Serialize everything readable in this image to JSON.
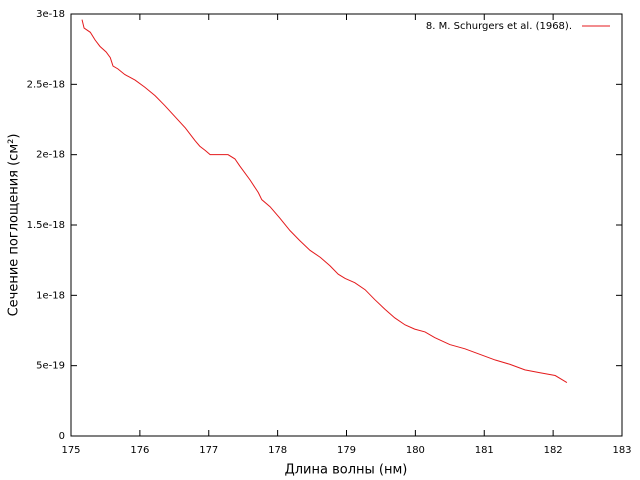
{
  "chart_data": {
    "type": "line",
    "xlabel": "Длина волны (нм)",
    "ylabel": "Сечение поглощения (см²)",
    "x": [
      175.16,
      175.19,
      175.28,
      175.35,
      175.42,
      175.51,
      175.57,
      175.61,
      175.68,
      175.78,
      175.93,
      176.07,
      176.22,
      176.36,
      176.51,
      176.66,
      176.8,
      176.87,
      176.95,
      177.02,
      177.16,
      177.28,
      177.38,
      177.45,
      177.6,
      177.72,
      177.77,
      177.89,
      178.03,
      178.18,
      178.32,
      178.47,
      178.62,
      178.76,
      178.88,
      178.98,
      179.12,
      179.27,
      179.41,
      179.56,
      179.7,
      179.85,
      179.99,
      180.14,
      180.28,
      180.5,
      180.72,
      180.94,
      181.16,
      181.37,
      181.59,
      181.81,
      182.03,
      182.2
    ],
    "series": [
      {
        "name": "8. M. Schurgers et al. (1968).",
        "color": "#e41a1c",
        "values": [
          2.96e-18,
          2.9e-18,
          2.87e-18,
          2.815e-18,
          2.77e-18,
          2.73e-18,
          2.69e-18,
          2.63e-18,
          2.61e-18,
          2.57e-18,
          2.53e-18,
          2.48e-18,
          2.42e-18,
          2.35e-18,
          2.27e-18,
          2.19e-18,
          2.1e-18,
          2.06e-18,
          2.03e-18,
          2e-18,
          2e-18,
          2e-18,
          1.97e-18,
          1.92e-18,
          1.82e-18,
          1.73e-18,
          1.68e-18,
          1.63e-18,
          1.55e-18,
          1.46e-18,
          1.39e-18,
          1.32e-18,
          1.27e-18,
          1.21e-18,
          1.15e-18,
          1.12e-18,
          1.09e-18,
          1.04e-18,
          9.7e-19,
          9e-19,
          8.4e-19,
          7.9e-19,
          7.6e-19,
          7.4e-19,
          7e-19,
          6.5e-19,
          6.2e-19,
          5.8e-19,
          5.4e-19,
          5.1e-19,
          4.7e-19,
          4.5e-19,
          4.3e-19,
          3.8e-19
        ]
      }
    ],
    "xlim": [
      175,
      183
    ],
    "xticks": [
      175,
      176,
      177,
      178,
      179,
      180,
      181,
      182,
      183
    ],
    "ylim": [
      0,
      3e-18
    ],
    "yticks": [
      0,
      5e-19,
      1e-18,
      1.5e-18,
      2e-18,
      2.5e-18,
      3e-18
    ],
    "legend": "top-right"
  }
}
